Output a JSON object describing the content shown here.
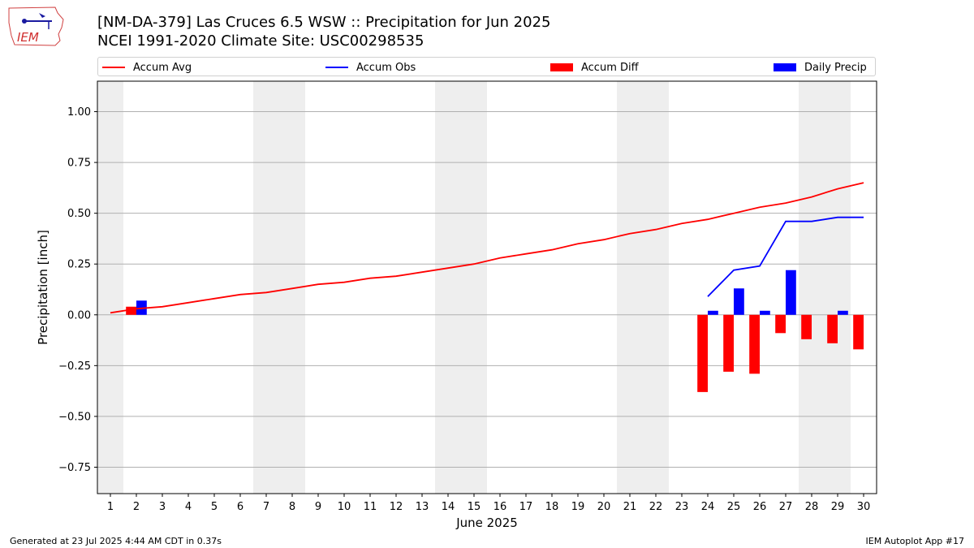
{
  "logo_text": "IEM",
  "title": {
    "line1": "[NM-DA-379] Las Cruces 6.5 WSW :: Precipitation for Jun 2025",
    "line2": "NCEI 1991-2020 Climate Site: USC00298535"
  },
  "legend": {
    "accum_avg": "Accum Avg",
    "accum_obs": "Accum Obs",
    "accum_diff": "Accum Diff",
    "daily_precip": "Daily Precip"
  },
  "colors": {
    "avg": "#ff0000",
    "obs": "#0000ff",
    "diff": "#ff0000",
    "daily": "#0000ff",
    "weekend_band": "#eeeeee",
    "grid": "#b0b0b0"
  },
  "footer": {
    "left": "Generated at 23 Jul 2025 4:44 AM CDT in 0.37s",
    "right": "IEM Autoplot App #17"
  },
  "chart_data": {
    "type": "bar",
    "xlabel": "June 2025",
    "ylabel": "Precipitation [inch]",
    "xlim": [
      0.5,
      30.5
    ],
    "ylim": [
      -0.88,
      1.15
    ],
    "yticks": [
      -0.75,
      -0.5,
      -0.25,
      0.0,
      0.25,
      0.5,
      0.75,
      1.0
    ],
    "ytick_labels": [
      "−0.75",
      "−0.50",
      "−0.25",
      "0.00",
      "0.25",
      "0.50",
      "0.75",
      "1.00"
    ],
    "days": [
      1,
      2,
      3,
      4,
      5,
      6,
      7,
      8,
      9,
      10,
      11,
      12,
      13,
      14,
      15,
      16,
      17,
      18,
      19,
      20,
      21,
      22,
      23,
      24,
      25,
      26,
      27,
      28,
      29,
      30
    ],
    "weekend_days": [
      1,
      7,
      8,
      14,
      15,
      21,
      22,
      28,
      29
    ],
    "grid": "y-major",
    "series": [
      {
        "name": "Accum Avg",
        "kind": "line",
        "x": [
          1,
          2,
          3,
          4,
          5,
          6,
          7,
          8,
          9,
          10,
          11,
          12,
          13,
          14,
          15,
          16,
          17,
          18,
          19,
          20,
          21,
          22,
          23,
          24,
          25,
          26,
          27,
          28,
          29,
          30
        ],
        "values": [
          0.01,
          0.03,
          0.04,
          0.06,
          0.08,
          0.1,
          0.11,
          0.13,
          0.15,
          0.16,
          0.18,
          0.19,
          0.21,
          0.23,
          0.25,
          0.28,
          0.3,
          0.32,
          0.35,
          0.37,
          0.4,
          0.42,
          0.45,
          0.47,
          0.5,
          0.53,
          0.55,
          0.58,
          0.62,
          0.65
        ]
      },
      {
        "name": "Accum Obs",
        "kind": "line",
        "x": [
          24,
          25,
          26,
          27,
          28,
          29,
          30
        ],
        "values": [
          0.09,
          0.22,
          0.24,
          0.46,
          0.46,
          0.48,
          0.48
        ]
      },
      {
        "name": "Accum Diff",
        "kind": "bar",
        "x": [
          2,
          24,
          25,
          26,
          27,
          28,
          29,
          30
        ],
        "values": [
          0.04,
          -0.38,
          -0.28,
          -0.29,
          -0.09,
          -0.12,
          -0.14,
          -0.17
        ]
      },
      {
        "name": "Daily Precip",
        "kind": "bar",
        "x": [
          2,
          24,
          25,
          26,
          27,
          29
        ],
        "values": [
          0.07,
          0.02,
          0.13,
          0.02,
          0.22,
          0.02
        ]
      }
    ]
  }
}
